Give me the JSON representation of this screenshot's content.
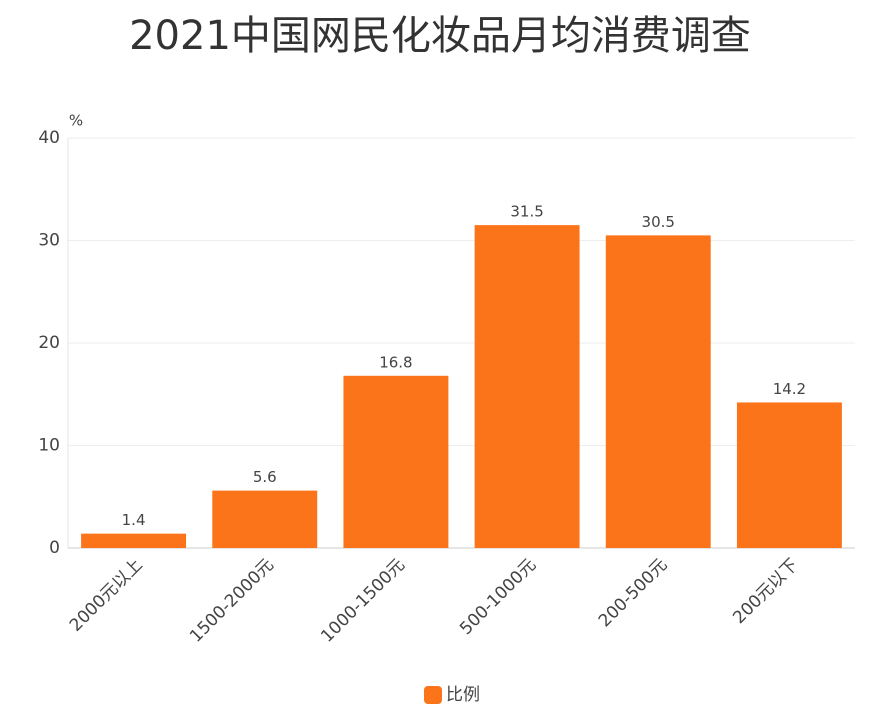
{
  "chart_data": {
    "type": "bar",
    "title": "2021中国网民化妆品月均消费调查",
    "y_label": "%",
    "categories": [
      "2000元以上",
      "1500-2000元",
      "1000-1500元",
      "500-1000元",
      "200-500元",
      "200元以下"
    ],
    "series": [
      {
        "name": "比例",
        "color": "#fc7419",
        "values": [
          1.4,
          5.6,
          16.8,
          31.5,
          30.5,
          14.2
        ]
      }
    ],
    "ylim": [
      0,
      40
    ],
    "yticks": [
      0,
      10,
      20,
      30,
      40
    ],
    "grid": true,
    "legend": "bottom",
    "data_labels": true
  }
}
